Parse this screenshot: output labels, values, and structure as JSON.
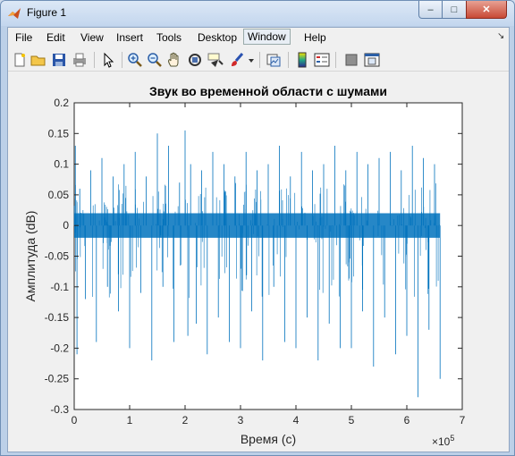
{
  "window": {
    "title": "Figure 1",
    "minimize": "–",
    "maximize": "□",
    "close": "✕"
  },
  "menu": [
    "File",
    "Edit",
    "View",
    "Insert",
    "Tools",
    "Desktop",
    "Window",
    "Help"
  ],
  "menu_pin": "↘",
  "toolbar": [
    "new-figure-icon",
    "open-folder-icon",
    "save-icon",
    "print-icon",
    "pointer-icon",
    "zoom-in-icon",
    "zoom-out-icon",
    "pan-icon",
    "rotate-3d-icon",
    "data-cursor-icon",
    "brush-icon",
    "brush-dropdown-icon",
    "link-plot-icon",
    "colorbar-icon",
    "legend-icon",
    "hide-plot-tools-icon",
    "show-plot-tools-icon"
  ],
  "colors": {
    "line": "#0072bd",
    "axes_bg": "#ffffff",
    "figure_bg": "#f0f0f0"
  },
  "chart_data": {
    "type": "line",
    "title": "Звук во временной области с шумами",
    "xlabel": "Время (с)",
    "ylabel": "Амплитуда (dB)",
    "x_exponent": "×10^5",
    "x_exponent_base": "×10",
    "x_exponent_power": "5",
    "xlim": [
      0,
      7
    ],
    "ylim": [
      -0.3,
      0.2
    ],
    "xticks": [
      "0",
      "1",
      "2",
      "3",
      "4",
      "5",
      "6",
      "7"
    ],
    "yticks": [
      "0.2",
      "0.15",
      "0.1",
      "0.05",
      "0",
      "-0.05",
      "-0.1",
      "-0.15",
      "-0.2",
      "-0.25",
      "-0.3"
    ],
    "x_data_end": 6.6,
    "series": [
      {
        "color": "#0072bd",
        "points": [
          [
            0,
            0
          ],
          [
            0.02,
            0.13
          ],
          [
            0.05,
            -0.21
          ],
          [
            0.1,
            0.06
          ],
          [
            0.2,
            -0.12
          ],
          [
            0.3,
            0.09
          ],
          [
            0.4,
            -0.19
          ],
          [
            0.5,
            0.11
          ],
          [
            0.6,
            -0.1
          ],
          [
            0.7,
            0.08
          ],
          [
            0.8,
            -0.14
          ],
          [
            0.9,
            0.1
          ],
          [
            1.0,
            -0.2
          ],
          [
            1.1,
            0.12
          ],
          [
            1.2,
            -0.11
          ],
          [
            1.3,
            0.08
          ],
          [
            1.4,
            -0.22
          ],
          [
            1.5,
            0.15
          ],
          [
            1.6,
            -0.1
          ],
          [
            1.7,
            0.13
          ],
          [
            1.8,
            -0.19
          ],
          [
            1.9,
            0.07
          ],
          [
            2.0,
            0.155
          ],
          [
            2.05,
            -0.18
          ],
          [
            2.1,
            0.1
          ],
          [
            2.2,
            -0.16
          ],
          [
            2.3,
            0.09
          ],
          [
            2.4,
            -0.21
          ],
          [
            2.5,
            0.12
          ],
          [
            2.6,
            -0.15
          ],
          [
            2.7,
            0.1
          ],
          [
            2.8,
            -0.19
          ],
          [
            2.9,
            0.08
          ],
          [
            3.0,
            -0.2
          ],
          [
            3.1,
            0.12
          ],
          [
            3.2,
            -0.14
          ],
          [
            3.3,
            0.09
          ],
          [
            3.4,
            -0.22
          ],
          [
            3.5,
            0.1
          ],
          [
            3.6,
            -0.1
          ],
          [
            3.7,
            0.13
          ],
          [
            3.8,
            -0.19
          ],
          [
            3.9,
            0.08
          ],
          [
            4.0,
            -0.2
          ],
          [
            4.1,
            0.12
          ],
          [
            4.2,
            -0.15
          ],
          [
            4.3,
            0.09
          ],
          [
            4.4,
            -0.22
          ],
          [
            4.5,
            0.1
          ],
          [
            4.6,
            -0.16
          ],
          [
            4.7,
            0.13
          ],
          [
            4.8,
            -0.2
          ],
          [
            4.9,
            0.09
          ],
          [
            5.0,
            -0.2
          ],
          [
            5.1,
            0.12
          ],
          [
            5.2,
            -0.14
          ],
          [
            5.3,
            0.1
          ],
          [
            5.4,
            -0.23
          ],
          [
            5.5,
            0.11
          ],
          [
            5.6,
            -0.15
          ],
          [
            5.7,
            0.12
          ],
          [
            5.8,
            -0.21
          ],
          [
            5.9,
            0.09
          ],
          [
            6.0,
            -0.18
          ],
          [
            6.1,
            0.13
          ],
          [
            6.2,
            -0.28
          ],
          [
            6.3,
            0.11
          ],
          [
            6.4,
            -0.17
          ],
          [
            6.5,
            0.1
          ],
          [
            6.6,
            -0.25
          ]
        ]
      }
    ],
    "noise_band": [
      -0.02,
      0.02
    ],
    "grid": false
  }
}
